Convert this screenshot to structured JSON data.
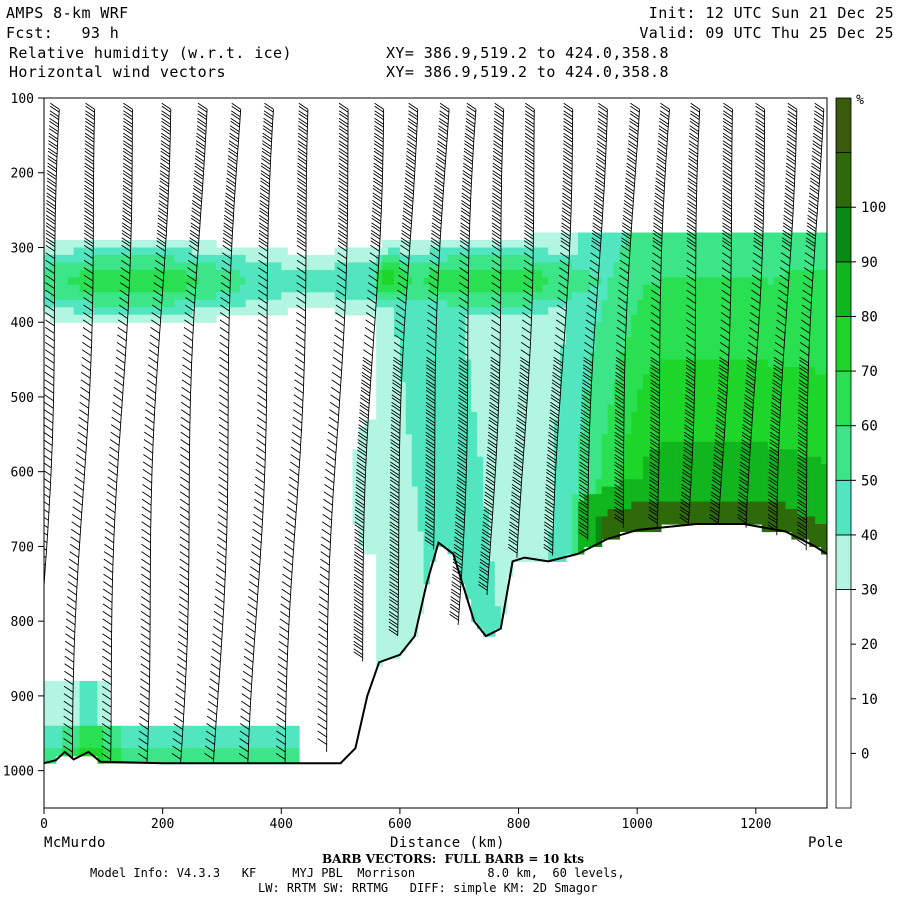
{
  "header": {
    "model_name": "AMPS 8-km WRF",
    "fcst": "Fcst:   93 h",
    "field1": "Relative humidity (w.r.t. ice)",
    "field2": "Horizontal wind vectors",
    "xy1": "XY= 386.9,519.2 to 424.0,358.8",
    "xy2": "XY= 386.9,519.2 to 424.0,358.8",
    "init": "Init: 12 UTC Sun 21 Dec 25",
    "valid": "Valid: 09 UTC Thu 25 Dec 25"
  },
  "footer": {
    "barb_note": "BARB VECTORS:  FULL BARB = 10 kts",
    "model_info": "Model Info: V4.3.3   KF     MYJ PBL  Morrison          8.0 km,  60 levels,",
    "physics": "LW: RRTM SW: RRTMG   DIFF: simple KM: 2D Smagor"
  },
  "chart_data": {
    "type": "heatmap",
    "xlabel": "Distance (km)",
    "ylabel": "",
    "x_ticks": [
      0,
      200,
      400,
      600,
      800,
      1000,
      1200
    ],
    "xlim": [
      0,
      1320
    ],
    "y_ticks": [
      100,
      200,
      300,
      400,
      500,
      600,
      700,
      800,
      900,
      1000
    ],
    "ylim": [
      100,
      1050
    ],
    "left_endpoint": "McMurdo",
    "right_endpoint": "Pole",
    "colorbar": {
      "unit": "%",
      "ticks": [
        0,
        10,
        20,
        30,
        40,
        50,
        60,
        70,
        80,
        90,
        100
      ],
      "levels": [
        {
          "min": -10,
          "max": 30,
          "color": "#ffffff"
        },
        {
          "min": 30,
          "max": 40,
          "color": "#b2f5e0"
        },
        {
          "min": 40,
          "max": 50,
          "color": "#52e6c0"
        },
        {
          "min": 50,
          "max": 60,
          "color": "#3ce688"
        },
        {
          "min": 60,
          "max": 70,
          "color": "#28e050"
        },
        {
          "min": 70,
          "max": 80,
          "color": "#1ed62a"
        },
        {
          "min": 80,
          "max": 90,
          "color": "#11b51d"
        },
        {
          "min": 90,
          "max": 100,
          "color": "#0a8a14"
        },
        {
          "min": 100,
          "max": 110,
          "color": "#2f6a0a"
        },
        {
          "min": 110,
          "max": 120,
          "color": "#3a5a0c"
        }
      ]
    },
    "terrain_surface": [
      {
        "x": 0,
        "p": 990
      },
      {
        "x": 20,
        "p": 986
      },
      {
        "x": 35,
        "p": 975
      },
      {
        "x": 50,
        "p": 985
      },
      {
        "x": 75,
        "p": 975
      },
      {
        "x": 95,
        "p": 988
      },
      {
        "x": 200,
        "p": 990
      },
      {
        "x": 500,
        "p": 990
      },
      {
        "x": 525,
        "p": 970
      },
      {
        "x": 545,
        "p": 900
      },
      {
        "x": 565,
        "p": 855
      },
      {
        "x": 600,
        "p": 845
      },
      {
        "x": 625,
        "p": 820
      },
      {
        "x": 645,
        "p": 750
      },
      {
        "x": 665,
        "p": 695
      },
      {
        "x": 690,
        "p": 710
      },
      {
        "x": 725,
        "p": 800
      },
      {
        "x": 745,
        "p": 820
      },
      {
        "x": 770,
        "p": 810
      },
      {
        "x": 790,
        "p": 720
      },
      {
        "x": 810,
        "p": 715
      },
      {
        "x": 850,
        "p": 720
      },
      {
        "x": 900,
        "p": 710
      },
      {
        "x": 950,
        "p": 690
      },
      {
        "x": 1000,
        "p": 678
      },
      {
        "x": 1100,
        "p": 670
      },
      {
        "x": 1180,
        "p": 670
      },
      {
        "x": 1250,
        "p": 680
      },
      {
        "x": 1300,
        "p": 700
      },
      {
        "x": 1320,
        "p": 710
      }
    ],
    "rh_features": [
      {
        "name": "upper-moist-layer",
        "x0": 0,
        "x1": 1320,
        "p_top": 280,
        "p_bot": 460,
        "rh": 45
      },
      {
        "name": "low-level-moist",
        "x0": 0,
        "x1": 420,
        "p_top": 940,
        "p_bot": 990,
        "rh": 60
      },
      {
        "name": "plateau-moist",
        "x0": 900,
        "x1": 1320,
        "p_top": 290,
        "p_bot": 680,
        "rh": 75
      }
    ],
    "wind_barb_columns_km": [
      30,
      90,
      150,
      210,
      270,
      330,
      390,
      450,
      515,
      570,
      625,
      680,
      730,
      780,
      830,
      890,
      945,
      1000,
      1055,
      1110,
      1165,
      1215,
      1265,
      1310
    ]
  }
}
